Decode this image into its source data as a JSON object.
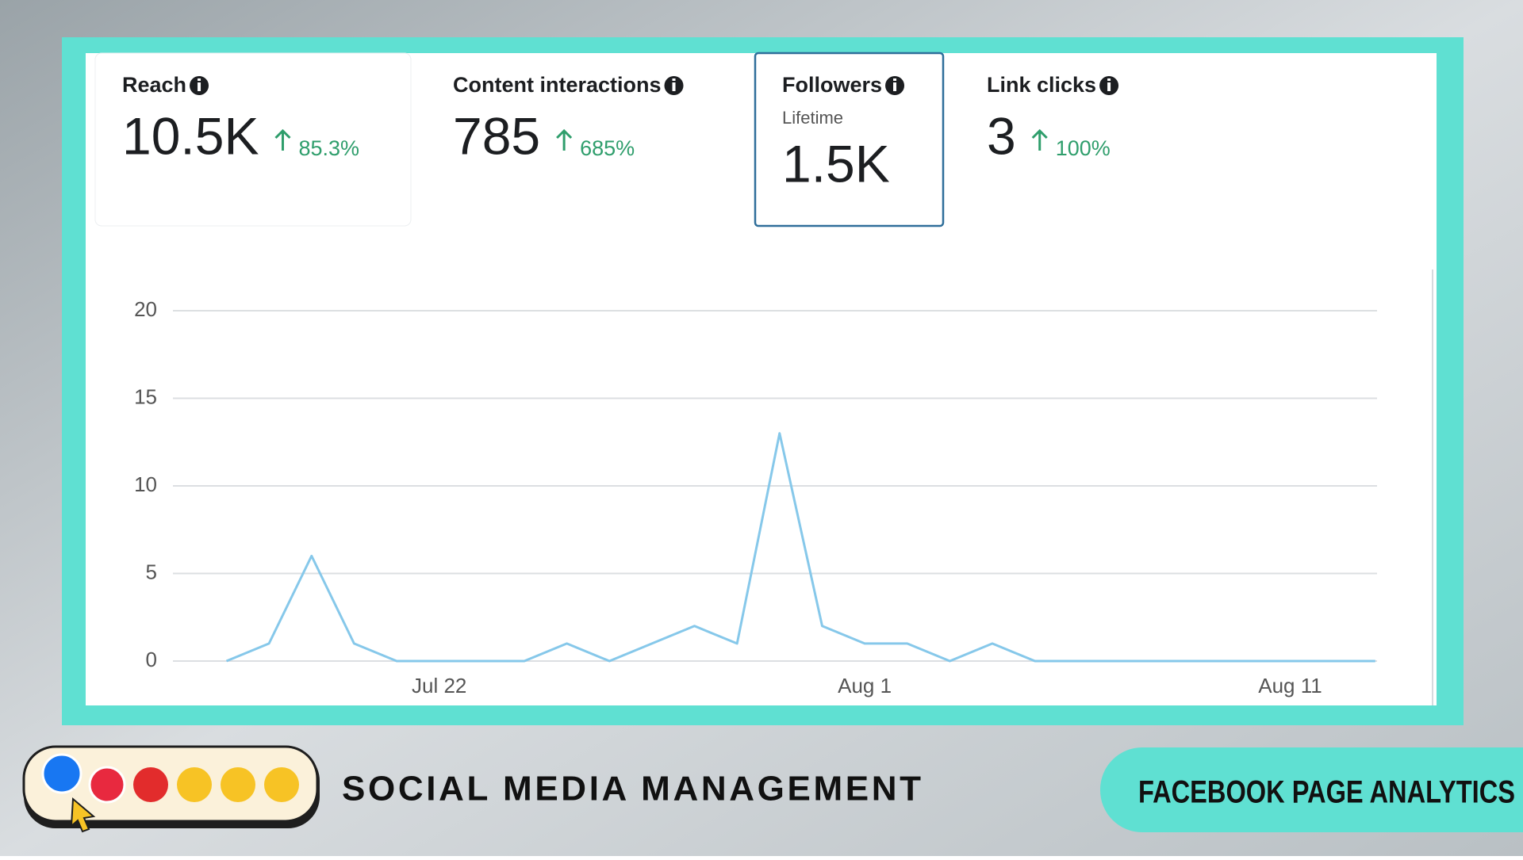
{
  "cards": [
    {
      "label": "Reach",
      "value": "10.5K",
      "change": "85.3%"
    },
    {
      "label": "Content interactions",
      "value": "785",
      "change": "685%"
    },
    {
      "label": "Followers",
      "subtitle": "Lifetime",
      "value": "1.5K"
    },
    {
      "label": "Link clicks",
      "value": "3",
      "change": "100%"
    }
  ],
  "chart_data": {
    "type": "line",
    "categories": [
      null,
      null,
      null,
      null,
      null,
      "Jul 22",
      null,
      null,
      null,
      null,
      null,
      null,
      null,
      null,
      null,
      "Aug 1",
      null,
      null,
      null,
      null,
      null,
      null,
      null,
      null,
      null,
      "Aug 11",
      null,
      null
    ],
    "values": [
      0,
      1,
      6,
      1,
      0,
      0,
      0,
      0,
      1,
      0,
      1,
      2,
      1,
      13,
      2,
      1,
      1,
      0,
      1,
      0,
      0,
      0,
      0,
      0,
      0,
      0,
      0,
      0
    ],
    "color": "#86c8ea",
    "ylim": [
      0,
      20
    ],
    "yticks": [
      0,
      5,
      10,
      15,
      20
    ],
    "grid": true
  },
  "footer": {
    "tagline": "SOCIAL MEDIA MANAGEMENT",
    "badge": "FACEBOOK PAGE ANALYTICS"
  }
}
